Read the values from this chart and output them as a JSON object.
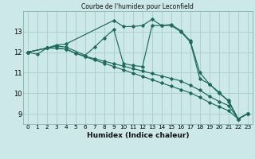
{
  "title": "Courbe de l'humidex pour Leconfield",
  "xlabel": "Humidex (Indice chaleur)",
  "bg_color": "#cce8e8",
  "grid_color": "#aacccc",
  "line_color": "#1a6b5a",
  "marker_color": "#1a6b5a",
  "xlim": [
    -0.5,
    23.5
  ],
  "ylim": [
    8.5,
    14.0
  ],
  "yticks": [
    9,
    10,
    11,
    12,
    13
  ],
  "xticks": [
    0,
    1,
    2,
    3,
    4,
    5,
    6,
    7,
    8,
    9,
    10,
    11,
    12,
    13,
    14,
    15,
    16,
    17,
    18,
    19,
    20,
    21,
    22,
    23
  ],
  "series": [
    {
      "x": [
        0,
        2,
        3,
        4,
        9,
        10,
        11,
        12,
        13,
        14,
        15,
        16,
        17,
        18,
        19,
        20,
        21,
        22,
        23
      ],
      "y": [
        12.0,
        12.2,
        12.35,
        12.4,
        13.55,
        13.25,
        13.25,
        13.3,
        13.6,
        13.3,
        13.35,
        13.05,
        12.55,
        11.0,
        10.45,
        10.05,
        9.6,
        8.75,
        9.0
      ]
    },
    {
      "x": [
        0,
        2,
        3,
        4,
        6,
        7,
        8,
        9,
        10,
        11,
        12,
        13,
        14,
        15,
        16,
        17,
        18,
        19,
        20,
        21,
        22,
        23
      ],
      "y": [
        12.0,
        12.2,
        12.3,
        12.25,
        11.85,
        12.25,
        12.7,
        13.1,
        11.45,
        11.35,
        11.3,
        13.3,
        13.3,
        13.3,
        13.0,
        12.5,
        10.7,
        10.45,
        10.0,
        9.65,
        8.75,
        9.0
      ]
    },
    {
      "x": [
        0,
        1,
        2,
        3,
        4,
        5,
        6,
        7,
        8,
        9,
        10,
        11,
        12,
        13,
        14,
        15,
        16,
        17,
        18,
        19,
        20,
        21,
        22,
        23
      ],
      "y": [
        12.0,
        11.9,
        12.2,
        12.2,
        12.15,
        11.95,
        11.8,
        11.68,
        11.56,
        11.44,
        11.32,
        11.2,
        11.08,
        10.96,
        10.84,
        10.72,
        10.6,
        10.38,
        10.15,
        9.85,
        9.6,
        9.4,
        8.75,
        9.0
      ]
    },
    {
      "x": [
        0,
        2,
        3,
        4,
        5,
        6,
        7,
        8,
        9,
        10,
        11,
        12,
        13,
        14,
        15,
        16,
        17,
        18,
        19,
        20,
        21,
        22,
        23
      ],
      "y": [
        12.0,
        12.2,
        12.2,
        12.15,
        11.95,
        11.78,
        11.62,
        11.46,
        11.3,
        11.14,
        10.98,
        10.82,
        10.66,
        10.5,
        10.34,
        10.18,
        10.02,
        9.8,
        9.55,
        9.35,
        9.15,
        8.75,
        9.0
      ]
    }
  ]
}
